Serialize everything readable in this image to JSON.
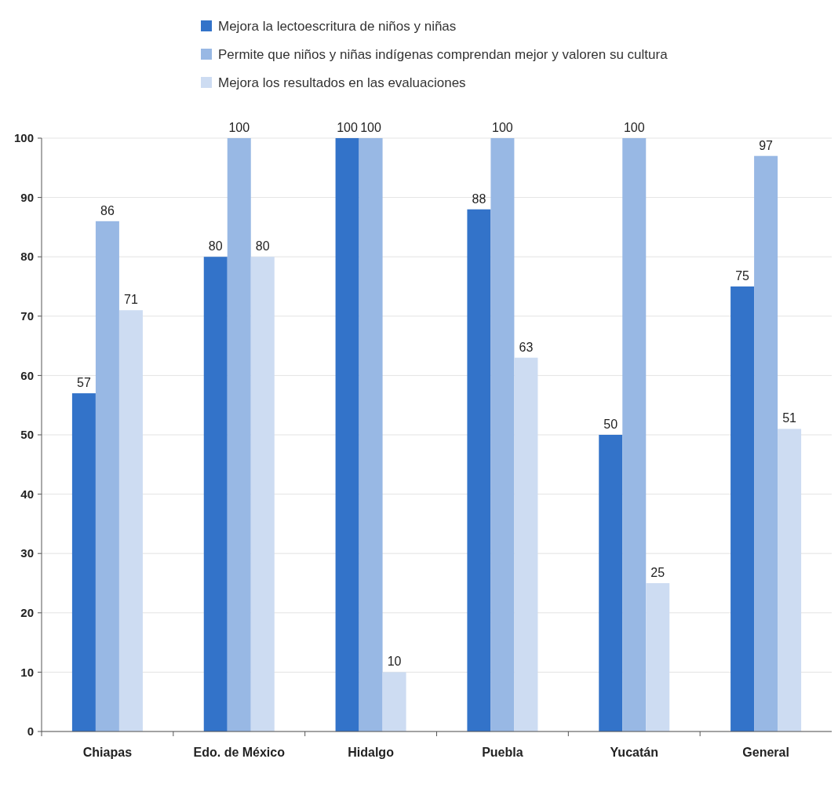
{
  "chart_data": {
    "type": "bar",
    "categories": [
      "Chiapas",
      "Edo. de México",
      "Hidalgo",
      "Puebla",
      "Yucatán",
      "General"
    ],
    "series": [
      {
        "name": "Mejora la lectoescritura de niños y niñas",
        "color": "#3373c9",
        "values": [
          57,
          80,
          100,
          88,
          50,
          75
        ]
      },
      {
        "name": "Permite que niños y niñas indígenas comprendan mejor y valoren su cultura",
        "color": "#98b8e4",
        "values": [
          86,
          100,
          100,
          100,
          100,
          97
        ]
      },
      {
        "name": "Mejora los resultados en las evaluaciones",
        "color": "#cddcf2",
        "values": [
          71,
          80,
          10,
          63,
          25,
          51
        ]
      }
    ],
    "ylim": [
      0,
      100
    ],
    "yticks": [
      0,
      10,
      20,
      30,
      40,
      50,
      60,
      70,
      80,
      90,
      100
    ],
    "grid": "y",
    "legend": "top",
    "data_labels": true
  }
}
